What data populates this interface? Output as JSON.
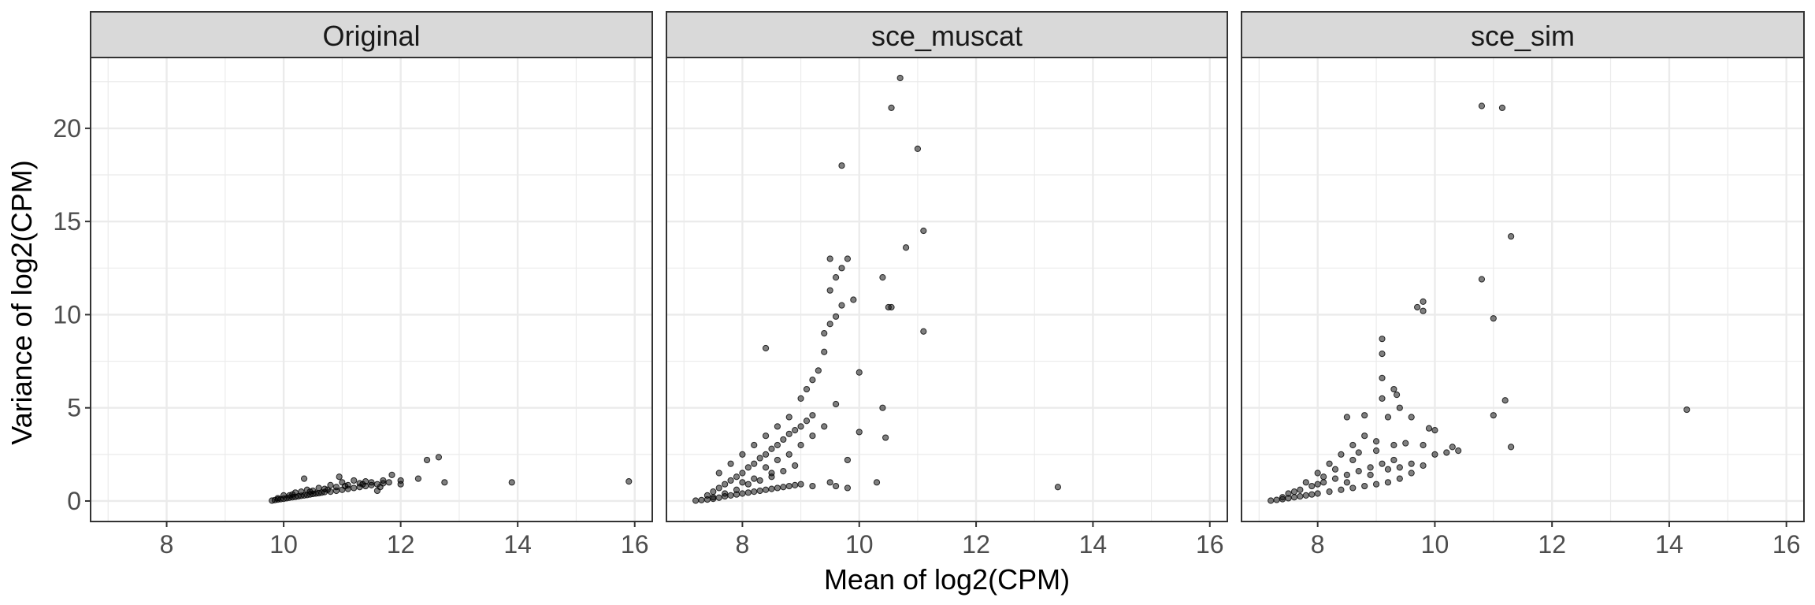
{
  "chart_data": {
    "type": "scatter",
    "xlabel": "Mean of log2(CPM)",
    "ylabel": "Variance of log2(CPM)",
    "xlim": [
      6.7,
      16.3
    ],
    "ylim": [
      -1.1,
      23.8
    ],
    "x_ticks": [
      "8",
      "10",
      "12",
      "14",
      "16"
    ],
    "y_ticks": [
      "0",
      "5",
      "10",
      "15",
      "20"
    ],
    "x_tick_values": [
      8,
      10,
      12,
      14,
      16
    ],
    "y_tick_values": [
      0,
      5,
      10,
      15,
      20
    ],
    "grid": true,
    "legend": "none",
    "colors": {
      "point": "#000000",
      "point_alpha": "0.5",
      "strip_bg": "#d9d9d9",
      "grid": "#ebebeb",
      "border": "#333333"
    },
    "facets": [
      {
        "label": "Original",
        "points": [
          [
            9.8,
            0.02
          ],
          [
            9.85,
            0.05
          ],
          [
            9.9,
            0.08
          ],
          [
            9.95,
            0.1
          ],
          [
            10.0,
            0.12
          ],
          [
            10.05,
            0.15
          ],
          [
            10.1,
            0.18
          ],
          [
            10.15,
            0.2
          ],
          [
            10.2,
            0.22
          ],
          [
            10.25,
            0.25
          ],
          [
            10.3,
            0.28
          ],
          [
            10.35,
            0.3
          ],
          [
            10.4,
            0.32
          ],
          [
            10.45,
            0.35
          ],
          [
            10.5,
            0.38
          ],
          [
            10.55,
            0.4
          ],
          [
            10.6,
            0.42
          ],
          [
            10.65,
            0.45
          ],
          [
            10.7,
            0.48
          ],
          [
            10.8,
            0.5
          ],
          [
            10.9,
            0.55
          ],
          [
            11.0,
            0.6
          ],
          [
            11.1,
            0.65
          ],
          [
            11.2,
            0.7
          ],
          [
            11.3,
            0.75
          ],
          [
            11.4,
            0.8
          ],
          [
            11.5,
            0.85
          ],
          [
            11.6,
            0.9
          ],
          [
            11.7,
            0.95
          ],
          [
            11.8,
            1.0
          ],
          [
            10.0,
            0.3
          ],
          [
            10.2,
            0.45
          ],
          [
            10.4,
            0.6
          ],
          [
            10.6,
            0.7
          ],
          [
            10.8,
            0.85
          ],
          [
            11.0,
            1.0
          ],
          [
            11.2,
            1.1
          ],
          [
            11.4,
            1.05
          ],
          [
            10.35,
            1.2
          ],
          [
            10.95,
            1.3
          ],
          [
            11.85,
            1.4
          ],
          [
            12.0,
            1.1
          ],
          [
            12.0,
            0.9
          ],
          [
            12.3,
            1.2
          ],
          [
            12.45,
            2.2
          ],
          [
            12.65,
            2.35
          ],
          [
            12.75,
            1.0
          ],
          [
            13.9,
            1.0
          ],
          [
            15.9,
            1.05
          ],
          [
            11.6,
            0.55
          ],
          [
            9.9,
            0.15
          ],
          [
            10.1,
            0.3
          ],
          [
            10.3,
            0.5
          ],
          [
            10.5,
            0.55
          ],
          [
            10.7,
            0.65
          ],
          [
            10.9,
            0.75
          ],
          [
            11.1,
            0.85
          ],
          [
            11.3,
            0.95
          ],
          [
            11.5,
            1.0
          ],
          [
            11.7,
            1.1
          ],
          [
            10.15,
            0.35
          ],
          [
            10.45,
            0.5
          ],
          [
            10.75,
            0.6
          ],
          [
            11.05,
            0.8
          ],
          [
            11.35,
            0.9
          ],
          [
            11.65,
            0.75
          ]
        ]
      },
      {
        "label": "sce_muscat",
        "points": [
          [
            7.2,
            0.02
          ],
          [
            7.3,
            0.05
          ],
          [
            7.4,
            0.08
          ],
          [
            7.5,
            0.12
          ],
          [
            7.6,
            0.18
          ],
          [
            7.7,
            0.25
          ],
          [
            7.8,
            0.3
          ],
          [
            7.9,
            0.35
          ],
          [
            8.0,
            0.4
          ],
          [
            8.1,
            0.45
          ],
          [
            8.2,
            0.5
          ],
          [
            8.3,
            0.55
          ],
          [
            8.4,
            0.6
          ],
          [
            8.5,
            0.65
          ],
          [
            8.6,
            0.7
          ],
          [
            8.7,
            0.75
          ],
          [
            8.8,
            0.8
          ],
          [
            8.9,
            0.85
          ],
          [
            9.0,
            0.9
          ],
          [
            9.2,
            0.8
          ],
          [
            7.4,
            0.3
          ],
          [
            7.5,
            0.5
          ],
          [
            7.6,
            0.7
          ],
          [
            7.7,
            0.9
          ],
          [
            7.8,
            1.1
          ],
          [
            7.9,
            1.3
          ],
          [
            8.0,
            1.5
          ],
          [
            8.1,
            1.8
          ],
          [
            8.2,
            2.0
          ],
          [
            8.3,
            2.3
          ],
          [
            8.4,
            2.5
          ],
          [
            8.5,
            2.8
          ],
          [
            8.6,
            3.0
          ],
          [
            8.7,
            3.3
          ],
          [
            8.8,
            3.6
          ],
          [
            8.9,
            3.8
          ],
          [
            9.0,
            4.0
          ],
          [
            9.1,
            4.3
          ],
          [
            9.2,
            4.6
          ],
          [
            8.5,
            1.5
          ],
          [
            8.0,
            2.5
          ],
          [
            8.2,
            3.0
          ],
          [
            8.4,
            3.5
          ],
          [
            8.6,
            4.0
          ],
          [
            8.8,
            4.5
          ],
          [
            9.0,
            5.5
          ],
          [
            9.1,
            6.0
          ],
          [
            9.2,
            6.5
          ],
          [
            9.3,
            7.0
          ],
          [
            8.4,
            8.2
          ],
          [
            7.6,
            1.5
          ],
          [
            7.8,
            2.0
          ],
          [
            8.0,
            1.0
          ],
          [
            8.2,
            1.2
          ],
          [
            8.4,
            1.8
          ],
          [
            8.6,
            2.2
          ],
          [
            8.8,
            2.5
          ],
          [
            9.0,
            3.0
          ],
          [
            9.2,
            3.5
          ],
          [
            9.4,
            4.0
          ],
          [
            9.5,
            1.0
          ],
          [
            9.6,
            0.8
          ],
          [
            9.8,
            2.2
          ],
          [
            10.0,
            3.7
          ],
          [
            9.8,
            0.7
          ],
          [
            10.3,
            1.0
          ],
          [
            10.45,
            3.4
          ],
          [
            10.4,
            5.0
          ],
          [
            10.0,
            6.9
          ],
          [
            9.6,
            5.2
          ],
          [
            9.4,
            8.0
          ],
          [
            9.4,
            9.0
          ],
          [
            9.5,
            9.5
          ],
          [
            9.6,
            9.9
          ],
          [
            9.7,
            10.5
          ],
          [
            9.5,
            11.3
          ],
          [
            9.6,
            12.0
          ],
          [
            9.7,
            12.5
          ],
          [
            9.5,
            13.0
          ],
          [
            9.8,
            13.0
          ],
          [
            9.9,
            10.8
          ],
          [
            10.4,
            12.0
          ],
          [
            10.5,
            10.4
          ],
          [
            10.55,
            10.4
          ],
          [
            10.8,
            13.6
          ],
          [
            11.1,
            14.5
          ],
          [
            11.1,
            9.1
          ],
          [
            11.0,
            18.9
          ],
          [
            9.7,
            18.0
          ],
          [
            10.55,
            21.1
          ],
          [
            10.7,
            22.7
          ],
          [
            13.4,
            0.75
          ],
          [
            7.9,
            0.6
          ],
          [
            8.1,
            0.9
          ],
          [
            8.3,
            1.1
          ],
          [
            8.5,
            1.3
          ],
          [
            8.7,
            1.6
          ],
          [
            8.9,
            1.9
          ],
          [
            7.5,
            0.2
          ],
          [
            7.7,
            0.4
          ]
        ]
      },
      {
        "label": "sce_sim",
        "points": [
          [
            7.2,
            0.02
          ],
          [
            7.3,
            0.06
          ],
          [
            7.4,
            0.1
          ],
          [
            7.5,
            0.15
          ],
          [
            7.6,
            0.2
          ],
          [
            7.7,
            0.25
          ],
          [
            7.8,
            0.3
          ],
          [
            7.9,
            0.35
          ],
          [
            8.0,
            0.4
          ],
          [
            8.2,
            0.5
          ],
          [
            8.4,
            0.6
          ],
          [
            8.6,
            0.7
          ],
          [
            8.8,
            0.8
          ],
          [
            9.0,
            0.9
          ],
          [
            9.2,
            1.0
          ],
          [
            9.4,
            1.2
          ],
          [
            9.6,
            1.5
          ],
          [
            9.8,
            1.9
          ],
          [
            9.6,
            2.0
          ],
          [
            9.4,
            1.8
          ],
          [
            7.5,
            0.4
          ],
          [
            7.7,
            0.6
          ],
          [
            7.9,
            0.8
          ],
          [
            8.1,
            1.0
          ],
          [
            8.3,
            1.2
          ],
          [
            8.5,
            1.4
          ],
          [
            8.7,
            1.6
          ],
          [
            8.9,
            1.8
          ],
          [
            9.1,
            2.0
          ],
          [
            9.3,
            2.2
          ],
          [
            8.0,
            1.5
          ],
          [
            8.2,
            2.0
          ],
          [
            8.4,
            2.5
          ],
          [
            8.6,
            3.0
          ],
          [
            8.8,
            3.5
          ],
          [
            9.0,
            3.2
          ],
          [
            9.2,
            4.5
          ],
          [
            9.3,
            3.0
          ],
          [
            8.5,
            4.5
          ],
          [
            8.8,
            4.6
          ],
          [
            9.1,
            5.5
          ],
          [
            9.1,
            6.6
          ],
          [
            9.1,
            8.7
          ],
          [
            9.1,
            7.9
          ],
          [
            9.3,
            6.0
          ],
          [
            9.35,
            5.7
          ],
          [
            9.4,
            5.0
          ],
          [
            9.6,
            4.5
          ],
          [
            9.8,
            3.0
          ],
          [
            10.0,
            2.5
          ],
          [
            10.2,
            2.6
          ],
          [
            10.4,
            2.7
          ],
          [
            9.9,
            3.9
          ],
          [
            10.0,
            3.8
          ],
          [
            10.3,
            2.9
          ],
          [
            9.7,
            10.4
          ],
          [
            9.8,
            10.7
          ],
          [
            9.8,
            10.2
          ],
          [
            10.8,
            11.9
          ],
          [
            11.0,
            9.8
          ],
          [
            11.0,
            4.6
          ],
          [
            11.2,
            5.4
          ],
          [
            11.3,
            2.9
          ],
          [
            11.3,
            14.2
          ],
          [
            10.8,
            21.2
          ],
          [
            11.15,
            21.1
          ],
          [
            14.3,
            4.9
          ],
          [
            8.0,
            0.9
          ],
          [
            8.3,
            1.7
          ],
          [
            8.6,
            2.2
          ],
          [
            7.8,
            1.0
          ],
          [
            8.1,
            1.3
          ],
          [
            8.7,
            2.6
          ],
          [
            9.0,
            2.7
          ],
          [
            9.5,
            3.1
          ],
          [
            7.6,
            0.5
          ],
          [
            8.9,
            1.4
          ],
          [
            9.2,
            1.7
          ],
          [
            7.4,
            0.2
          ],
          [
            8.5,
            1.0
          ]
        ]
      }
    ]
  }
}
